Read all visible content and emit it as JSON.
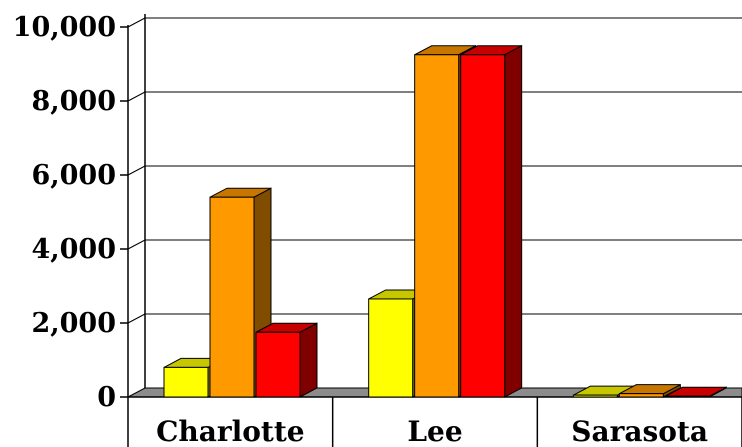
{
  "chart_data": {
    "type": "bar",
    "categories": [
      "Charlotte",
      "Lee",
      "Sarasota"
    ],
    "series": [
      {
        "values": [
          800,
          2650,
          50
        ],
        "color": "#ffff00"
      },
      {
        "values": [
          5400,
          9250,
          90
        ],
        "color": "#ff9900"
      },
      {
        "values": [
          1750,
          9250,
          20
        ],
        "color": "#ff0000"
      }
    ],
    "yticks": [
      "0",
      "2,000",
      "4,000",
      "6,000",
      "8,000",
      "10,000"
    ],
    "ylim": [
      0,
      10000
    ],
    "grid": true,
    "style": "3d"
  }
}
